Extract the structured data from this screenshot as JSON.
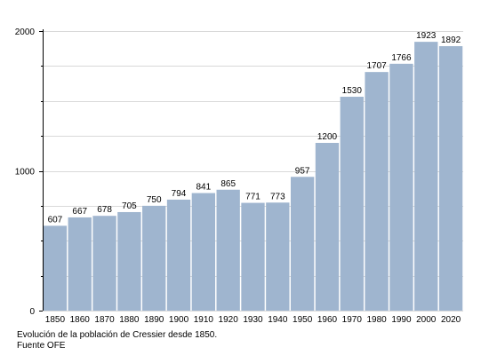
{
  "chart_data": {
    "type": "bar",
    "title": "",
    "xlabel": "",
    "ylabel": "",
    "categories": [
      "1850",
      "1860",
      "1870",
      "1880",
      "1890",
      "1900",
      "1910",
      "1920",
      "1930",
      "1940",
      "1950",
      "1960",
      "1970",
      "1980",
      "1990",
      "2000",
      "2020"
    ],
    "values": [
      607,
      667,
      678,
      705,
      750,
      794,
      841,
      865,
      771,
      773,
      957,
      1200,
      1530,
      1707,
      1766,
      1923,
      1892
    ],
    "ylim": [
      0,
      2000
    ],
    "yticks_major": [
      0,
      1000,
      2000
    ],
    "yticks_minor_step": 250,
    "grid": true,
    "legend": "none",
    "bar_color": "#9fb5cf",
    "grid_color": "#d9d9d9",
    "axis_color": "#000000"
  },
  "caption": {
    "line1": "Evolución de la población de Cressier desde 1850.",
    "line2": "Fuente OFE"
  }
}
